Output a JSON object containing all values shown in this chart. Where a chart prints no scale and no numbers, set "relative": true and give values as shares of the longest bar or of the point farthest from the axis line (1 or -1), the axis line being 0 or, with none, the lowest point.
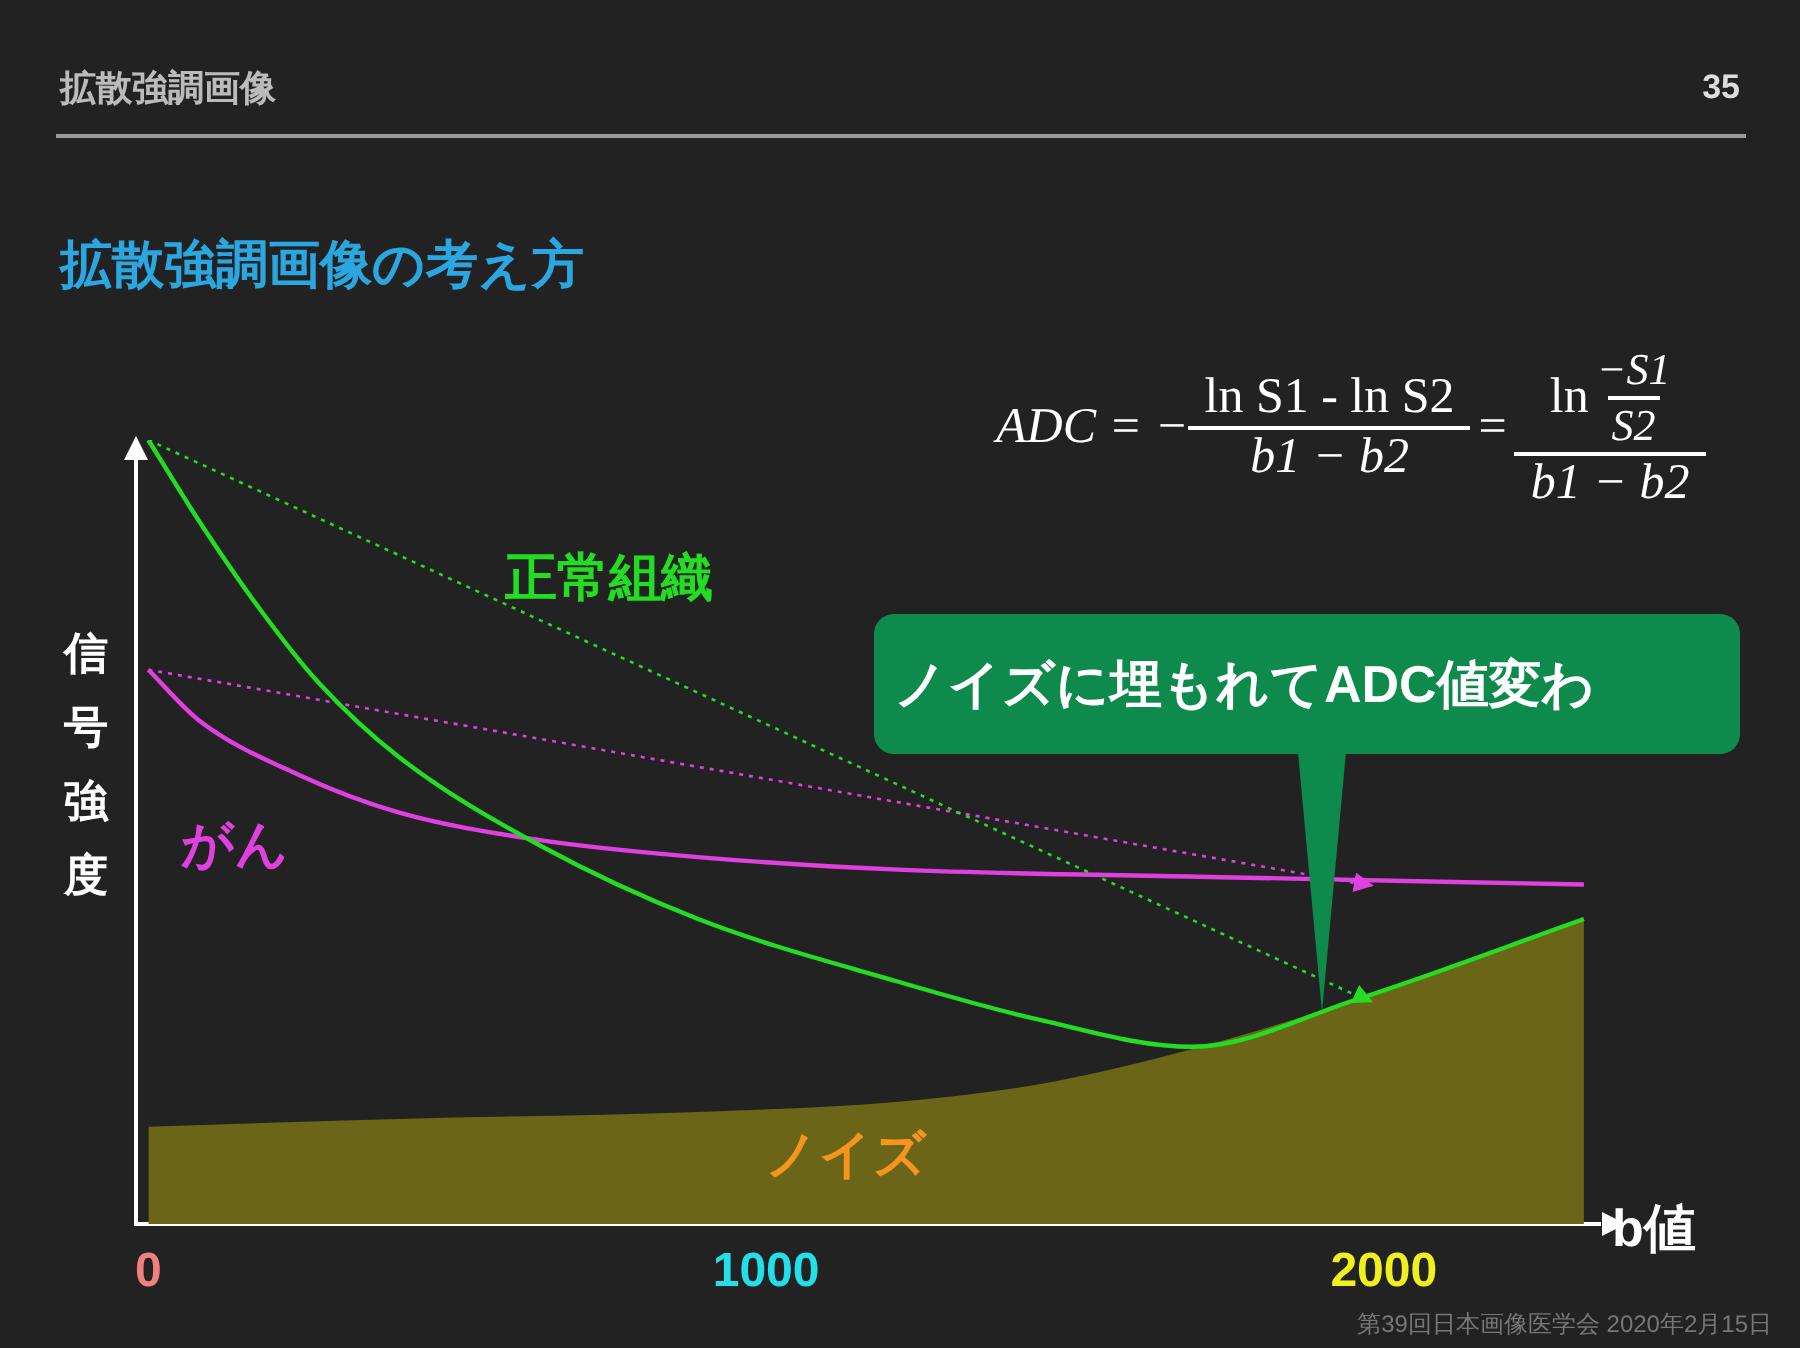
{
  "chart_data": {
    "type": "line",
    "title": "拡散強調画像の考え方",
    "xlabel": "b値",
    "ylabel": "信号強度",
    "relative": true,
    "legend": false,
    "grid": false,
    "tick_labels": "x",
    "xlim": [
      -20,
      2350
    ],
    "xticks": [
      0,
      1000,
      2000
    ],
    "series": [
      {
        "name": "正常組織",
        "type": "line",
        "color": "#22dd22",
        "line_style": "solid",
        "x": [
          0,
          81,
          178,
          275,
          405,
          631,
          890,
          1214,
          1440,
          1689,
          1958,
          2324
        ],
        "values": [
          1.0,
          0.898,
          0.787,
          0.691,
          0.596,
          0.484,
          0.389,
          0.309,
          0.261,
          0.226,
          0.287,
          0.389
        ]
      },
      {
        "name": "がん",
        "type": "line",
        "color": "#e040e0",
        "line_style": "solid",
        "x": [
          0,
          81,
          243,
          405,
          631,
          890,
          1214,
          1699,
          2324
        ],
        "values": [
          0.707,
          0.643,
          0.573,
          0.525,
          0.49,
          0.468,
          0.452,
          0.443,
          0.433
        ]
      },
      {
        "name": "ノイズ",
        "type": "area",
        "color": "#6b6518",
        "x": [
          0,
          405,
          890,
          1214,
          1440,
          1689,
          1958,
          2324
        ],
        "values": [
          0.124,
          0.134,
          0.143,
          0.156,
          0.178,
          0.223,
          0.287,
          0.389
        ]
      },
      {
        "type": "line",
        "color": "#22dd22",
        "line_style": "dotted",
        "x": [
          0,
          1968
        ],
        "values": [
          1.0,
          0.287
        ]
      },
      {
        "type": "line",
        "color": "#e040e0",
        "line_style": "dotted",
        "x": [
          0,
          1968
        ],
        "values": [
          0.707,
          0.433
        ]
      }
    ],
    "annotations": [
      "拡散強調画像",
      "35",
      "ADC = −",
      "ln S1 - ln S2",
      "b1 − b2",
      "=",
      "ln",
      "−S1",
      "S2",
      "b1 − b2",
      "ノイズに埋もれてADC値変わ",
      "第39回日本画像医学会 2020年2月15日"
    ]
  }
}
